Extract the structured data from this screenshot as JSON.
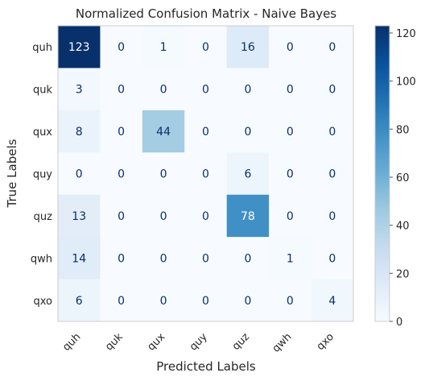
{
  "chart_data": {
    "type": "heatmap",
    "title": "Normalized Confusion Matrix - Naive Bayes",
    "xlabel": "Predicted Labels",
    "ylabel": "True Labels",
    "x_categories": [
      "quh",
      "quk",
      "qux",
      "quy",
      "quz",
      "qwh",
      "qxo"
    ],
    "y_categories": [
      "quh",
      "quk",
      "qux",
      "quy",
      "quz",
      "qwh",
      "qxo"
    ],
    "values": [
      [
        123,
        0,
        1,
        0,
        16,
        0,
        0
      ],
      [
        3,
        0,
        0,
        0,
        0,
        0,
        0
      ],
      [
        8,
        0,
        44,
        0,
        0,
        0,
        0
      ],
      [
        0,
        0,
        0,
        0,
        6,
        0,
        0
      ],
      [
        13,
        0,
        0,
        0,
        78,
        0,
        0
      ],
      [
        14,
        0,
        0,
        0,
        0,
        1,
        0
      ],
      [
        6,
        0,
        0,
        0,
        0,
        0,
        4
      ]
    ],
    "colorbar": {
      "range": [
        0,
        123
      ],
      "ticks": [
        0,
        20,
        40,
        60,
        80,
        100,
        120
      ]
    },
    "colormap": "Blues",
    "grid": true
  }
}
